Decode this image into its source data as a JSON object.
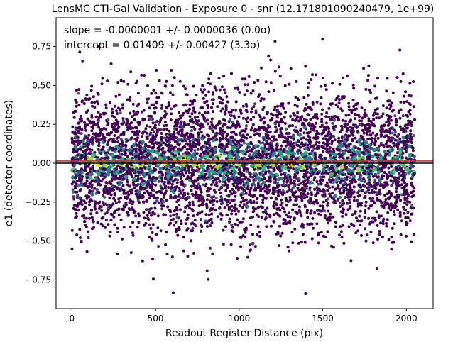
{
  "chart_data": {
    "type": "scatter",
    "title": "LensMC CTI-Gal Validation - Exposure 0 - snr (12.171801090240479, 1e+99)",
    "xlabel": "Readout Register Distance (pix)",
    "ylabel": "e1 (detector coordinates)",
    "xlim": [
      -95,
      2160
    ],
    "ylim": [
      -0.935,
      0.935
    ],
    "xticks": [
      0,
      500,
      1000,
      1500,
      2000
    ],
    "yticks": [
      -0.75,
      -0.5,
      -0.25,
      0.0,
      0.25,
      0.5,
      0.75
    ],
    "xtick_labels": [
      "0",
      "500",
      "1000",
      "1500",
      "2000"
    ],
    "ytick_labels": [
      "−0.75",
      "−0.50",
      "−0.25",
      "0.00",
      "0.25",
      "0.50",
      "0.75"
    ],
    "annotations": [
      "slope = -0.0000001 +/- 0.0000036 (0.0σ)",
      "intercept = 0.01409 +/- 0.00427 (3.3σ)"
    ],
    "fit": {
      "slope": -1e-07,
      "intercept": 0.01409,
      "color": "#d62728"
    },
    "reference_line": {
      "y": 0.0,
      "color": "#000000"
    },
    "x_data_range": [
      0,
      2050
    ],
    "y_spread_sd": 0.22,
    "colormap": "viridis",
    "colors": {
      "low": "#440154",
      "mid": "#21918c",
      "high": "#fde725"
    },
    "grid": false
  }
}
